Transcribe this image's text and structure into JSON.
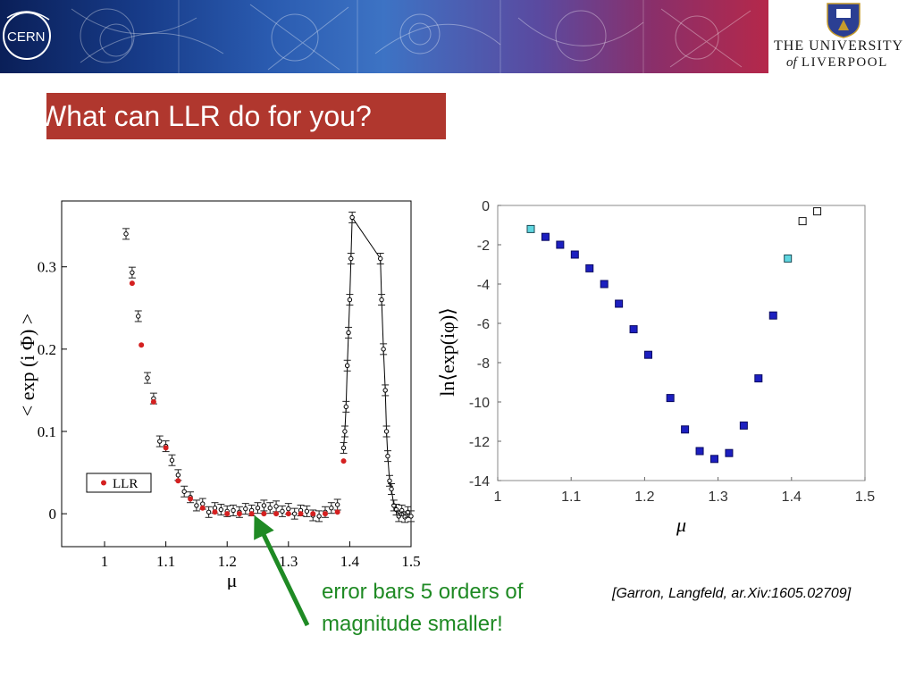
{
  "header": {
    "cern_logo_text": "CERN",
    "university_line1": "THE UNIVERSITY",
    "university_of": "of",
    "university_line2": "LIVERPOOL",
    "university_crest_icon": "liverpool-crest-icon"
  },
  "slide": {
    "title": "What can LLR do for you?",
    "callout": "error bars 5 orders of magnitude smaller!",
    "citation": "[Garron, Langfeld, ar.Xiv:1605.02709]"
  },
  "colors": {
    "title_bg": "#b0372e",
    "callout_green": "#1f8a24",
    "llr_red": "#d42020",
    "dark_blue_marker": "#1c1fc0",
    "cyan_marker": "#5fd6e0"
  },
  "chart_data": [
    {
      "type": "scatter",
      "xlabel": "μ",
      "ylabel": "< exp (i Φ) >",
      "xlim": [
        0.93,
        1.5
      ],
      "ylim": [
        -0.04,
        0.38
      ],
      "xticks": [
        1,
        1.1,
        1.2,
        1.3,
        1.4,
        1.5
      ],
      "xtick_labels": [
        "1",
        "1.1",
        "1.2",
        "1.3",
        "1.4",
        "1.5"
      ],
      "yticks": [
        0,
        0.1,
        0.2,
        0.3
      ],
      "ytick_labels": [
        "0",
        "0.1",
        "0.2",
        "0.3"
      ],
      "legend": {
        "position": "left",
        "entries": [
          "LLR"
        ]
      },
      "series": [
        {
          "marker": "open-circle-errorbar",
          "points": [
            [
              1.035,
              0.34
            ],
            [
              1.045,
              0.293
            ],
            [
              1.055,
              0.24
            ],
            [
              1.07,
              0.165
            ],
            [
              1.08,
              0.14
            ],
            [
              1.09,
              0.088
            ],
            [
              1.1,
              0.082
            ],
            [
              1.11,
              0.065
            ],
            [
              1.12,
              0.047
            ],
            [
              1.13,
              0.027
            ],
            [
              1.14,
              0.02
            ],
            [
              1.15,
              0.01
            ],
            [
              1.16,
              0.012
            ],
            [
              1.17,
              0.002
            ],
            [
              1.18,
              0.007
            ],
            [
              1.19,
              0.005
            ],
            [
              1.2,
              0.003
            ],
            [
              1.21,
              0.004
            ],
            [
              1.22,
              0.002
            ],
            [
              1.23,
              0.006
            ],
            [
              1.24,
              0.004
            ],
            [
              1.25,
              0.007
            ],
            [
              1.26,
              0.01
            ],
            [
              1.27,
              0.007
            ],
            [
              1.28,
              0.009
            ],
            [
              1.29,
              0.003
            ],
            [
              1.3,
              0.006
            ],
            [
              1.31,
              0.0
            ],
            [
              1.32,
              0.004
            ],
            [
              1.33,
              0.003
            ],
            [
              1.34,
              -0.002
            ],
            [
              1.35,
              -0.003
            ],
            [
              1.36,
              0.002
            ],
            [
              1.37,
              0.007
            ],
            [
              1.38,
              0.011
            ],
            [
              1.39,
              0.08
            ],
            [
              1.392,
              0.1
            ],
            [
              1.394,
              0.13
            ],
            [
              1.396,
              0.18
            ],
            [
              1.398,
              0.22
            ],
            [
              1.4,
              0.26
            ],
            [
              1.402,
              0.31
            ],
            [
              1.404,
              0.36
            ],
            [
              1.45,
              0.31
            ],
            [
              1.452,
              0.26
            ],
            [
              1.455,
              0.2
            ],
            [
              1.458,
              0.15
            ],
            [
              1.46,
              0.1
            ],
            [
              1.462,
              0.07
            ],
            [
              1.465,
              0.04
            ],
            [
              1.468,
              0.03
            ],
            [
              1.472,
              0.01
            ],
            [
              1.476,
              0.005
            ],
            [
              1.48,
              -0.003
            ],
            [
              1.485,
              0.004
            ],
            [
              1.49,
              -0.004
            ],
            [
              1.495,
              0.002
            ],
            [
              1.5,
              -0.003
            ]
          ]
        },
        {
          "name": "LLR",
          "marker": "red-dot",
          "points": [
            [
              1.045,
              0.28
            ],
            [
              1.06,
              0.205
            ],
            [
              1.08,
              0.136
            ],
            [
              1.1,
              0.08
            ],
            [
              1.12,
              0.04
            ],
            [
              1.14,
              0.018
            ],
            [
              1.16,
              0.007
            ],
            [
              1.18,
              0.002
            ],
            [
              1.2,
              0.0
            ],
            [
              1.22,
              0.0
            ],
            [
              1.24,
              0.0
            ],
            [
              1.26,
              0.0
            ],
            [
              1.28,
              0.0
            ],
            [
              1.3,
              0.0
            ],
            [
              1.32,
              0.0
            ],
            [
              1.34,
              0.0
            ],
            [
              1.36,
              0.0
            ],
            [
              1.38,
              0.002
            ],
            [
              1.39,
              0.064
            ]
          ]
        }
      ]
    },
    {
      "type": "scatter",
      "xlabel": "μ",
      "ylabel": "ln⟨exp(iφ)⟩",
      "xlim": [
        1,
        1.5
      ],
      "ylim": [
        -14,
        0
      ],
      "xticks": [
        1,
        1.1,
        1.2,
        1.3,
        1.4,
        1.5
      ],
      "xtick_labels": [
        "1",
        "1.1",
        "1.2",
        "1.3",
        "1.4",
        "1.5"
      ],
      "yticks": [
        0,
        -2,
        -4,
        -6,
        -8,
        -10,
        -12,
        -14
      ],
      "ytick_labels": [
        "0",
        "-2",
        "-4",
        "-6",
        "-8",
        "-10",
        "-12",
        "-14"
      ],
      "grid": false,
      "series": [
        {
          "marker": "dark-blue-square",
          "points": [
            [
              1.065,
              -1.6
            ],
            [
              1.085,
              -2.0
            ],
            [
              1.105,
              -2.5
            ],
            [
              1.125,
              -3.2
            ],
            [
              1.145,
              -4.0
            ],
            [
              1.165,
              -5.0
            ],
            [
              1.185,
              -6.3
            ],
            [
              1.205,
              -7.6
            ],
            [
              1.235,
              -9.8
            ],
            [
              1.255,
              -11.4
            ],
            [
              1.275,
              -12.5
            ],
            [
              1.295,
              -12.9
            ],
            [
              1.315,
              -12.6
            ],
            [
              1.335,
              -11.2
            ],
            [
              1.355,
              -8.8
            ],
            [
              1.375,
              -5.6
            ]
          ]
        },
        {
          "marker": "cyan-square",
          "points": [
            [
              1.045,
              -1.2
            ],
            [
              1.395,
              -2.7
            ]
          ]
        },
        {
          "marker": "open-square",
          "points": [
            [
              1.415,
              -0.8
            ],
            [
              1.435,
              -0.3
            ]
          ]
        }
      ]
    }
  ]
}
